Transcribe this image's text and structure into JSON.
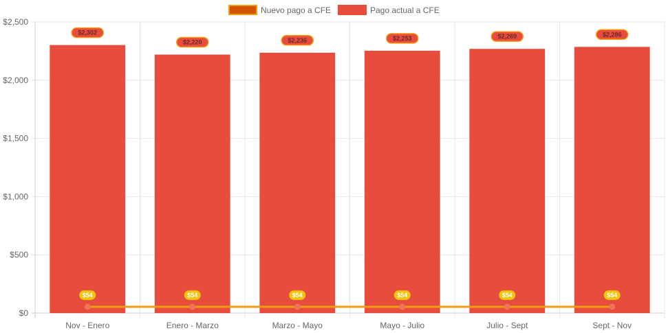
{
  "chart_data": {
    "type": "bar",
    "categories": [
      "Nov - Enero",
      "Enero - Marzo",
      "Marzo - Mayo",
      "Mayo - Julio",
      "Julio - Sept",
      "Sept - Nov"
    ],
    "series": [
      {
        "name": "Nuevo pago a CFE",
        "type": "line",
        "values": [
          54,
          54,
          54,
          54,
          54,
          54
        ],
        "labels": [
          "$54",
          "$54",
          "$54",
          "$54",
          "$54",
          "$54"
        ],
        "color": "#f39c12",
        "point_color": "#f0735a",
        "label_bg": "#f1c40f"
      },
      {
        "name": "Pago actual a CFE",
        "type": "bar",
        "values": [
          2302,
          2220,
          2236,
          2253,
          2269,
          2286
        ],
        "labels": [
          "$2,302",
          "$2,220",
          "$2,236",
          "$2,253",
          "$2,269",
          "$2,286"
        ],
        "color": "#e74c3c",
        "label_bg": "#e74c3c",
        "label_border": "#f39c12"
      }
    ],
    "ylim": [
      0,
      2500
    ],
    "yticks": [
      0,
      500,
      1000,
      1500,
      2000,
      2500
    ],
    "ytick_labels": [
      "$0",
      "$500",
      "$1,000",
      "$1,500",
      "$2,000",
      "$2,500"
    ],
    "grid": true,
    "legend_position": "top"
  }
}
